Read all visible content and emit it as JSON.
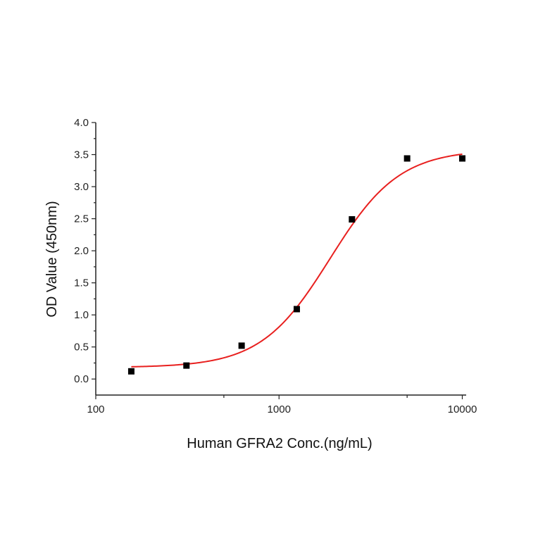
{
  "chart_data": {
    "type": "scatter",
    "title": "",
    "xlabel": "Human GFRA2 Conc.(ng/mL)",
    "ylabel": "OD Value (450nm)",
    "xscale": "log",
    "xlim": [
      100,
      10500
    ],
    "ylim": [
      -0.25,
      4.0
    ],
    "xticks": [
      "100",
      "1000",
      "10000"
    ],
    "yticks": [
      "0.0",
      "0.5",
      "1.0",
      "1.5",
      "2.0",
      "2.5",
      "3.0",
      "3.5",
      "4.0"
    ],
    "grid": false,
    "legend": "none",
    "points": {
      "x": [
        156.25,
        312.5,
        625,
        1250,
        2500,
        5000,
        10000
      ],
      "y": [
        0.12,
        0.21,
        0.52,
        1.09,
        2.49,
        3.44,
        3.44
      ],
      "color": "#000000",
      "marker": "square"
    },
    "fit": {
      "model": "4PL",
      "bottom": 0.18,
      "top": 3.58,
      "ec50": 1900,
      "hill": 2.3,
      "x_range": [
        156.25,
        10000
      ],
      "color": "#e8201f"
    }
  }
}
